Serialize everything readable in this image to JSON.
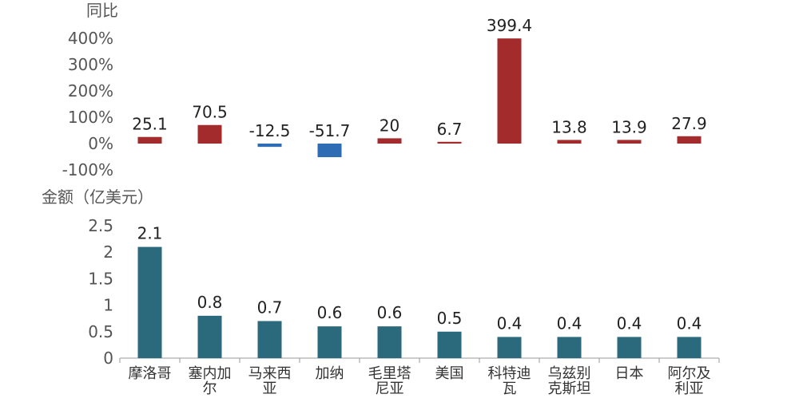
{
  "chart_data": [
    {
      "type": "bar",
      "ylabel": "同比",
      "y_unit": "%",
      "ylim": [
        -100,
        400
      ],
      "yticks": [
        -100,
        0,
        100,
        200,
        300,
        400
      ],
      "ytick_labels": [
        "-100%",
        "0%",
        "100%",
        "200%",
        "300%",
        "400%"
      ],
      "categories": [
        "摩洛哥",
        "塞内加尔",
        "马来西亚",
        "加纳",
        "毛里塔尼亚",
        "美国",
        "科特迪瓦",
        "乌兹别克斯坦",
        "日本",
        "阿尔及利亚"
      ],
      "values": [
        25.1,
        70.5,
        -12.5,
        -51.7,
        20,
        6.7,
        399.4,
        13.8,
        13.9,
        27.9
      ],
      "value_labels": [
        "25.1",
        "70.5",
        "-12.5",
        "-51.7",
        "20",
        "6.7",
        "399.4",
        "13.8",
        "13.9",
        "27.9"
      ],
      "colors": {
        "positive": "#A32B2B",
        "negative": "#2E6DB4"
      }
    },
    {
      "type": "bar",
      "ylabel": "金额（亿美元）",
      "ylim": [
        0,
        2.5
      ],
      "yticks": [
        0,
        0.5,
        1,
        1.5,
        2,
        2.5
      ],
      "ytick_labels": [
        "0",
        "0.5",
        "1",
        "1.5",
        "2",
        "2.5"
      ],
      "categories": [
        "摩洛哥",
        "塞内加尔",
        "马来西亚",
        "加纳",
        "毛里塔尼亚",
        "美国",
        "科特迪瓦",
        "乌兹别克斯坦",
        "日本",
        "阿尔及利亚"
      ],
      "category_lines": [
        [
          "摩洛哥"
        ],
        [
          "塞内加",
          "尔"
        ],
        [
          "马来西",
          "亚"
        ],
        [
          "加纳"
        ],
        [
          "毛里塔",
          "尼亚"
        ],
        [
          "美国"
        ],
        [
          "科特迪",
          "瓦"
        ],
        [
          "乌兹别",
          "克斯坦"
        ],
        [
          "日本"
        ],
        [
          "阿尔及",
          "利亚"
        ]
      ],
      "values": [
        2.1,
        0.8,
        0.7,
        0.6,
        0.6,
        0.5,
        0.4,
        0.4,
        0.4,
        0.4
      ],
      "value_labels": [
        "2.1",
        "0.8",
        "0.7",
        "0.6",
        "0.6",
        "0.5",
        "0.4",
        "0.4",
        "0.4",
        "0.4"
      ],
      "colors": {
        "bar": "#2B6A7C",
        "axis": "#999999"
      }
    }
  ]
}
